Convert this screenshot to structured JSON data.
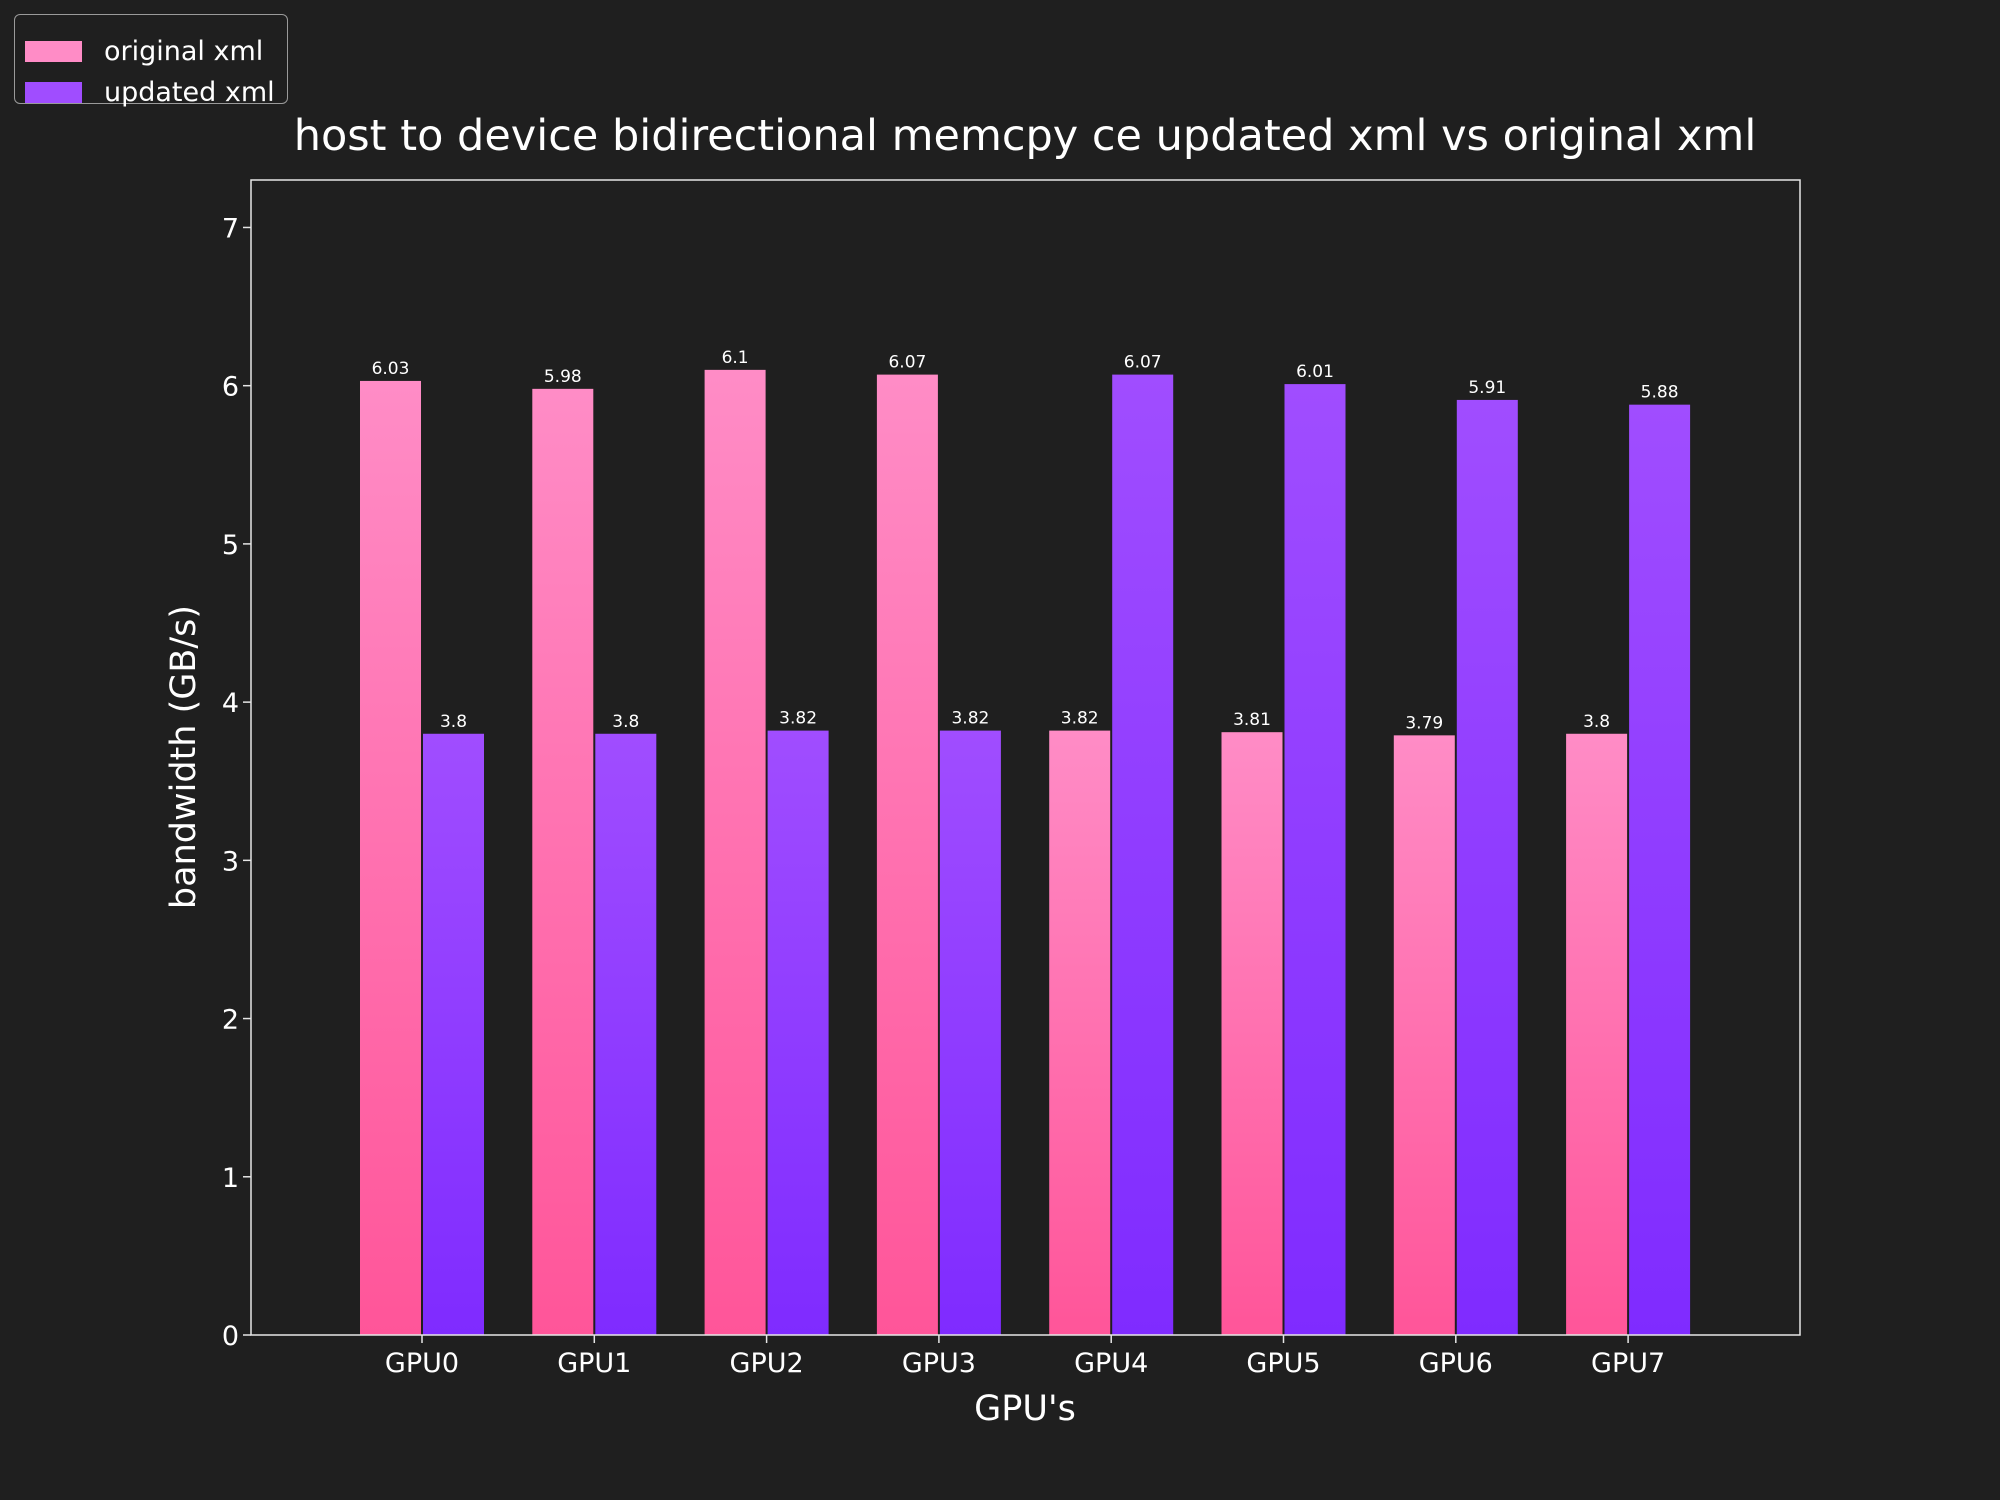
{
  "chart_data": {
    "type": "bar",
    "title": "host to device bidirectional memcpy ce updated xml vs original xml",
    "xlabel": "GPU's",
    "ylabel": "bandwidth (GB/s)",
    "categories": [
      "GPU0",
      "GPU1",
      "GPU2",
      "GPU3",
      "GPU4",
      "GPU5",
      "GPU6",
      "GPU7"
    ],
    "series": [
      {
        "name": "original xml",
        "values": [
          6.03,
          5.98,
          6.1,
          6.07,
          3.82,
          3.81,
          3.79,
          3.8
        ],
        "color": "#ff8cc6",
        "color_bottom": "#ff5599"
      },
      {
        "name": "updated xml",
        "values": [
          3.8,
          3.8,
          3.82,
          3.82,
          6.07,
          6.01,
          5.91,
          5.88
        ],
        "color": "#a04dff",
        "color_bottom": "#7f2bff"
      }
    ],
    "ylim": [
      0,
      7.3
    ],
    "yticks": [
      0,
      1,
      2,
      3,
      4,
      5,
      6,
      7
    ],
    "legend_position": "top-left",
    "grid": false,
    "background": "#1f1f1f",
    "text_color": "#ffffff"
  }
}
